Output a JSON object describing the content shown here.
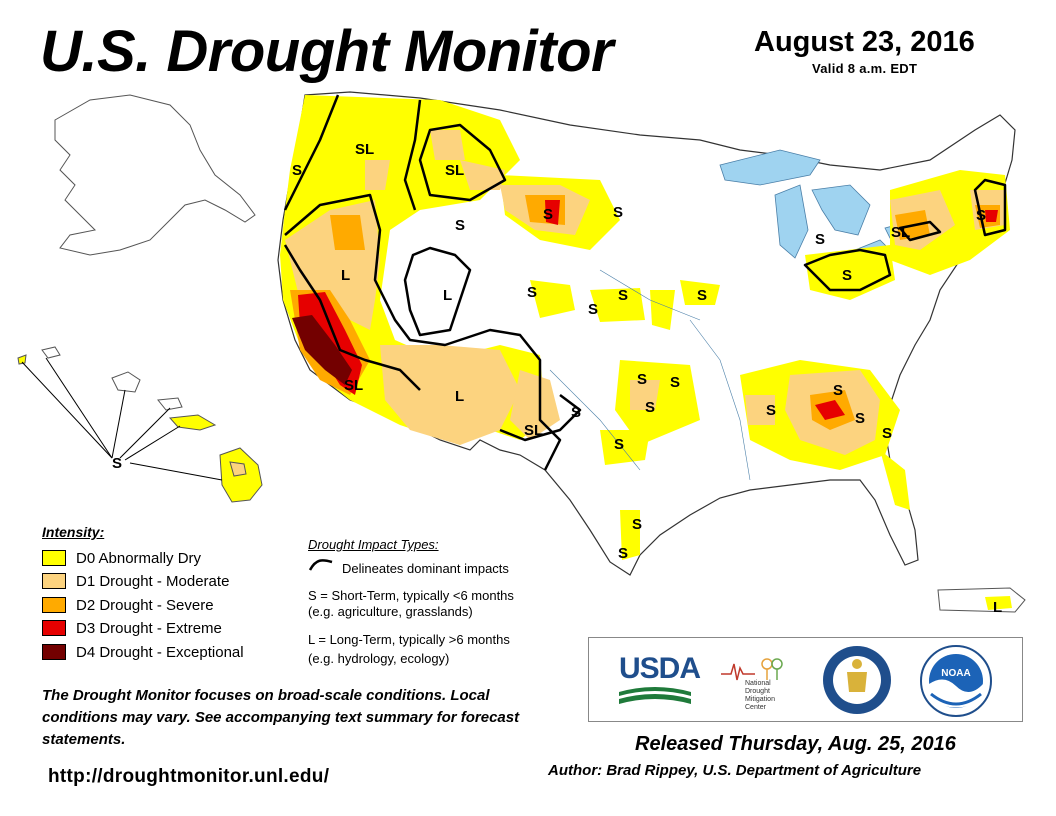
{
  "header": {
    "title": "U.S. Drought Monitor",
    "date": "August 23, 2016",
    "valid": "Valid 8 a.m. EDT"
  },
  "colors": {
    "D0": "#ffff00",
    "D1": "#fcd37f",
    "D2": "#ffaa00",
    "D3": "#e60000",
    "D4": "#730000",
    "water": "#9fd3f0",
    "land": "#ffffff",
    "boundary": "#000000"
  },
  "map_labels": [
    "S",
    "SL",
    "S",
    "SL",
    "S",
    "S",
    "L",
    "L",
    "S",
    "S",
    "S",
    "SL",
    "L",
    "S",
    "S",
    "SL",
    "S",
    "S",
    "S",
    "S",
    "S",
    "S",
    "S",
    "S",
    "S",
    "S",
    "SL",
    "S",
    "S",
    "S",
    "L",
    "S"
  ],
  "legend": {
    "title": "Intensity:",
    "items": [
      {
        "code": "D0",
        "label": "D0 Abnormally Dry"
      },
      {
        "code": "D1",
        "label": "D1 Drought - Moderate"
      },
      {
        "code": "D2",
        "label": "D2 Drought - Severe"
      },
      {
        "code": "D3",
        "label": "D3 Drought - Extreme"
      },
      {
        "code": "D4",
        "label": "D4 Drought - Exceptional"
      }
    ]
  },
  "impacts": {
    "title": "Drought Impact Types:",
    "line": "Delineates dominant impacts",
    "short_term_1": "S = Short-Term, typically <6 months",
    "short_term_2": "(e.g. agriculture, grasslands)",
    "long_term_1": "L = Long-Term, typically >6 months",
    "long_term_2": "(e.g. hydrology, ecology)"
  },
  "note": "The Drought Monitor focuses on broad-scale conditions. Local conditions may vary. See accompanying text summary for forecast statements.",
  "url": "http://droughtmonitor.unl.edu/",
  "released": "Released Thursday, Aug. 25, 2016",
  "author": "Author: Brad Rippey, U.S. Department of Agriculture",
  "logos": {
    "usda": "USDA",
    "ndmc_1": "National",
    "ndmc_2": "Drought",
    "ndmc_3": "Mitigation",
    "ndmc_4": "Center",
    "noaa": "NOAA"
  }
}
